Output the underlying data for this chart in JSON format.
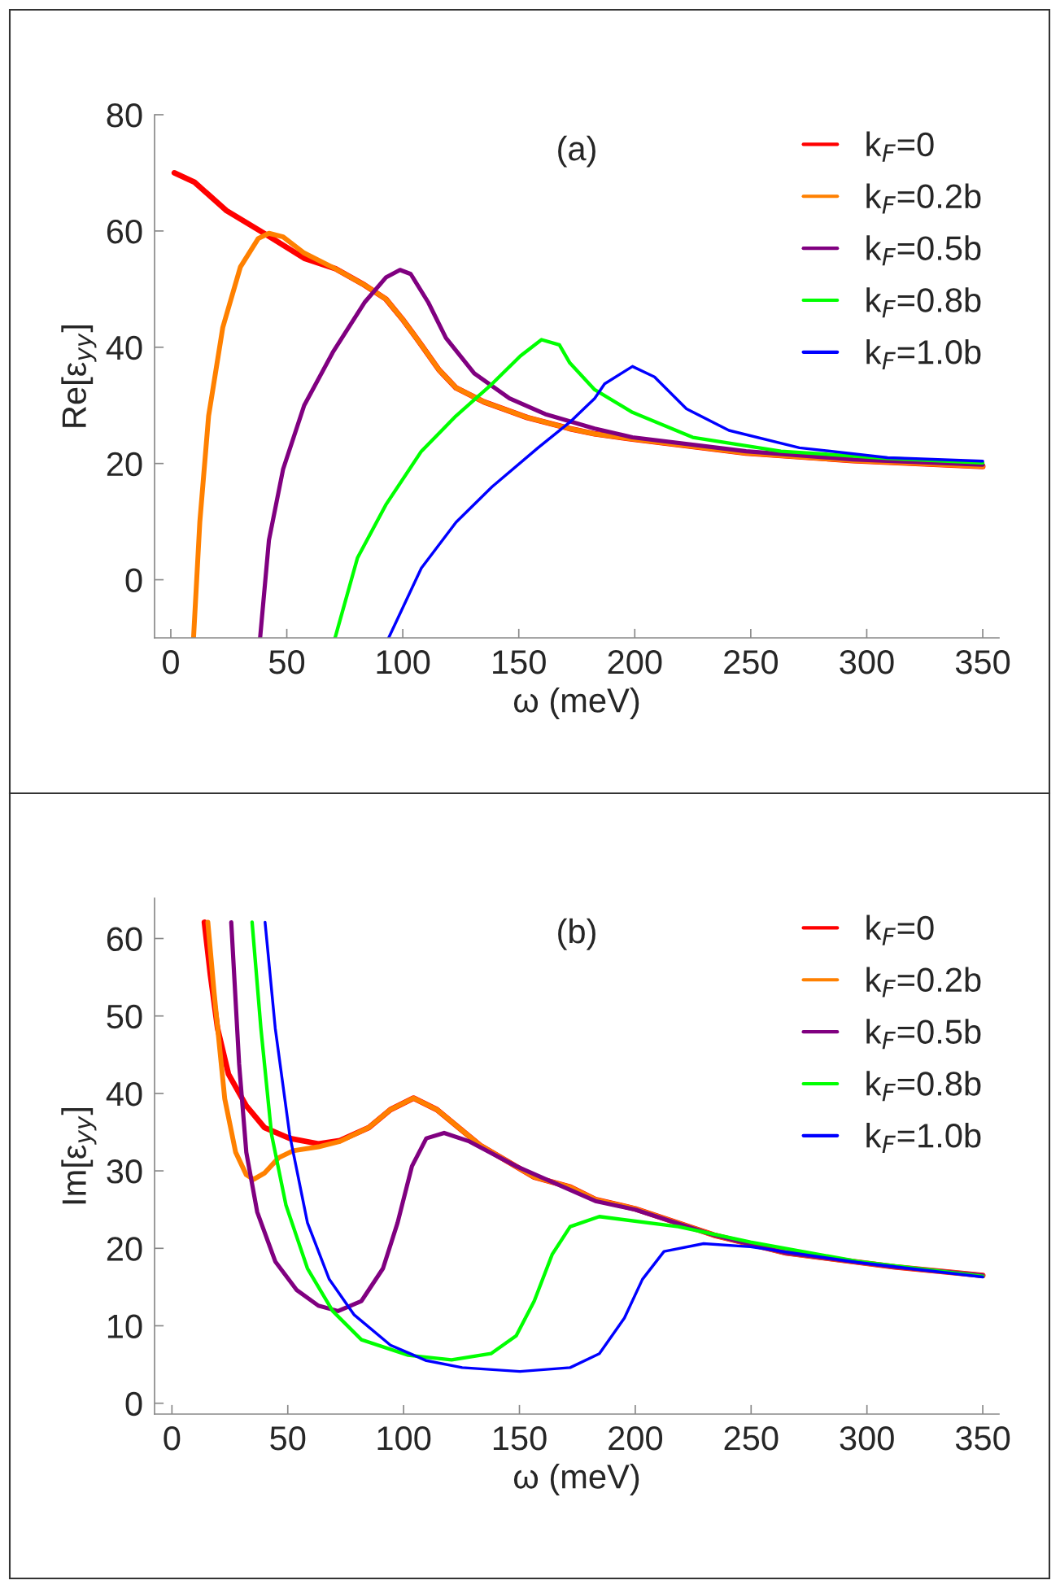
{
  "chart_data": [
    {
      "type": "line",
      "title": "(a)",
      "xlabel": "ω (meV)",
      "ylabel": "Re[ε$_{yy}$]",
      "xlim": [
        -7,
        357
      ],
      "ylim": [
        -10,
        80
      ],
      "xticks": [
        0,
        50,
        100,
        150,
        200,
        250,
        300,
        350
      ],
      "yticks": [
        0,
        20,
        40,
        60,
        80
      ],
      "legend": "top right",
      "grid": false,
      "series": [
        {
          "name": "k$_{F}$=0",
          "color": "#ff0000",
          "x": [
            1.5,
            10.2,
            24,
            39,
            57.5,
            71,
            83.5,
            92.7,
            100.3,
            108,
            115.6,
            123,
            135,
            153.7,
            172,
            182.7,
            199,
            248,
            294,
            350
          ],
          "values": [
            70,
            68.4,
            63.5,
            59.9,
            55.3,
            53.5,
            50.7,
            48.3,
            44.6,
            40.4,
            36.1,
            33,
            30.6,
            27.9,
            26,
            25.1,
            24.2,
            21.8,
            20.5,
            19.5
          ]
        },
        {
          "name": "k$_{F}$=0.2b",
          "color": "#ff8000",
          "x": [
            9.8,
            12.5,
            16.3,
            22.4,
            30,
            37.7,
            42.3,
            48.4,
            57.5,
            71,
            83.5,
            92.7,
            100.3,
            108,
            115.6,
            123,
            135,
            153.7,
            172,
            182.7,
            199,
            248,
            294,
            350
          ],
          "values": [
            -10,
            9.9,
            28.2,
            43.4,
            53.8,
            58.7,
            59.6,
            59,
            56.2,
            53.5,
            50.7,
            48.3,
            44.6,
            40.4,
            36.1,
            33,
            30.6,
            27.9,
            26,
            25.1,
            24.2,
            21.8,
            20.5,
            19.5
          ]
        },
        {
          "name": "k$_{F}$=0.5b",
          "color": "#800080",
          "x": [
            38.5,
            42.3,
            48.4,
            57.5,
            69.8,
            83.5,
            92.7,
            98.8,
            103.4,
            111,
            118.6,
            130.8,
            146,
            161.4,
            182.7,
            199,
            248,
            294,
            350
          ],
          "values": [
            -10,
            6.8,
            19,
            30,
            39.1,
            47.7,
            52,
            53.3,
            52.6,
            47.7,
            41.6,
            35.5,
            31.2,
            28.5,
            26,
            24.5,
            22.1,
            20.7,
            19.8
          ]
        },
        {
          "name": "k$_{F}$=0.8b",
          "color": "#00ff00",
          "x": [
            70.8,
            80.5,
            92.7,
            108,
            123,
            138.5,
            150.7,
            159.8,
            167.5,
            172,
            182.7,
            199,
            225,
            263,
            309,
            350
          ],
          "values": [
            -10,
            3.8,
            12.9,
            22.1,
            28.2,
            33.7,
            38.5,
            41.3,
            40.4,
            37.3,
            32.7,
            28.8,
            24.5,
            22.1,
            20.9,
            20.1
          ]
        },
        {
          "name": "k$_{F}$=1.0b",
          "color": "#0000ff",
          "x": [
            93.9,
            108,
            123,
            138.5,
            158.3,
            172,
            182.7,
            187,
            199,
            208.5,
            222.3,
            240.6,
            271,
            309,
            350
          ],
          "values": [
            -10,
            2,
            9.9,
            16,
            22.7,
            27.1,
            31.2,
            33.7,
            36.7,
            34.9,
            29.4,
            25.7,
            22.7,
            21,
            20.4
          ]
        }
      ]
    },
    {
      "type": "line",
      "title": "(b)",
      "xlabel": "ω (meV)",
      "ylabel": "Im[ε$_{yy}$]",
      "xlim": [
        -7.5,
        357
      ],
      "ylim": [
        -1.4,
        65.2
      ],
      "xticks": [
        0,
        50,
        100,
        150,
        200,
        250,
        300,
        350
      ],
      "yticks": [
        0,
        10,
        20,
        30,
        40,
        50,
        60
      ],
      "legend": "top right",
      "grid": false,
      "series": [
        {
          "name": "k$_{F}$=0",
          "color": "#ff0000",
          "x": [
            14,
            16.6,
            19.7,
            24.4,
            32.1,
            39.9,
            50.8,
            63.2,
            72.5,
            85,
            94.3,
            104.3,
            114.4,
            133,
            156.4,
            172,
            182.8,
            200,
            234,
            265,
            312,
            350
          ],
          "values": [
            62.1,
            55.3,
            48.4,
            42.5,
            38.4,
            35.6,
            34.2,
            33.5,
            33.9,
            35.6,
            37.9,
            39.4,
            37.9,
            33.3,
            29.2,
            27.9,
            26.3,
            25.1,
            21.7,
            19.4,
            17.6,
            16.5
          ]
        },
        {
          "name": "k$_{F}$=0.2b",
          "color": "#ff8000",
          "x": [
            15.5,
            18.2,
            22.8,
            27.5,
            32.1,
            35.2,
            39.9,
            46.1,
            52.3,
            63.2,
            72.5,
            85,
            94.3,
            104.3,
            114.4,
            133,
            156.4,
            172,
            182.8,
            200,
            234,
            265,
            312,
            350
          ],
          "values": [
            62.1,
            53,
            39.3,
            32.4,
            29.5,
            28.9,
            29.7,
            31.7,
            32.6,
            33.1,
            33.8,
            35.6,
            37.9,
            39.4,
            37.9,
            33.3,
            29.2,
            27.9,
            26.3,
            25.1,
            21.7,
            19.4,
            17.6,
            16.5
          ]
        },
        {
          "name": "k$_{F}$=0.5b",
          "color": "#800080",
          "x": [
            25.6,
            29,
            32.1,
            36.8,
            44.6,
            53.9,
            63.2,
            71.7,
            81.8,
            91.1,
            97.4,
            103.6,
            109.8,
            117.5,
            128.4,
            148.6,
            182.8,
            200,
            234,
            265,
            312,
            350
          ],
          "values": [
            62.1,
            43.8,
            32.4,
            24.7,
            18.3,
            14.6,
            12.6,
            11.9,
            13.2,
            17.4,
            23.3,
            30.6,
            34.2,
            34.9,
            33.8,
            30.6,
            26.1,
            25,
            21.7,
            19.4,
            17.6,
            16.5
          ]
        },
        {
          "name": "k$_{F}$=0.8b",
          "color": "#00ff00",
          "x": [
            34.6,
            38.4,
            43,
            49.2,
            58.5,
            69.4,
            81.8,
            102,
            120.7,
            137.7,
            148.6,
            156.4,
            164.1,
            171.9,
            184.5,
            218.6,
            249.7,
            296,
            350
          ],
          "values": [
            62.1,
            48.4,
            34.7,
            25.6,
            17.4,
            11.9,
            8.2,
            6.2,
            5.6,
            6.4,
            8.7,
            13.2,
            19.2,
            22.8,
            24.1,
            22.8,
            20.8,
            18.3,
            16.4
          ]
        },
        {
          "name": "k$_{F}$=1.0b",
          "color": "#0000ff",
          "x": [
            40.2,
            44.6,
            50.8,
            58.5,
            67.9,
            78.7,
            94.3,
            109.8,
            125.3,
            150.2,
            171.9,
            184.5,
            195.3,
            203.1,
            212.4,
            229.5,
            249.7,
            296,
            350
          ],
          "values": [
            62.1,
            48.4,
            34.7,
            23.3,
            16,
            11.4,
            7.5,
            5.5,
            4.6,
            4.1,
            4.6,
            6.4,
            11,
            16,
            19.6,
            20.6,
            20.2,
            18.2,
            16.3
          ]
        }
      ]
    }
  ]
}
